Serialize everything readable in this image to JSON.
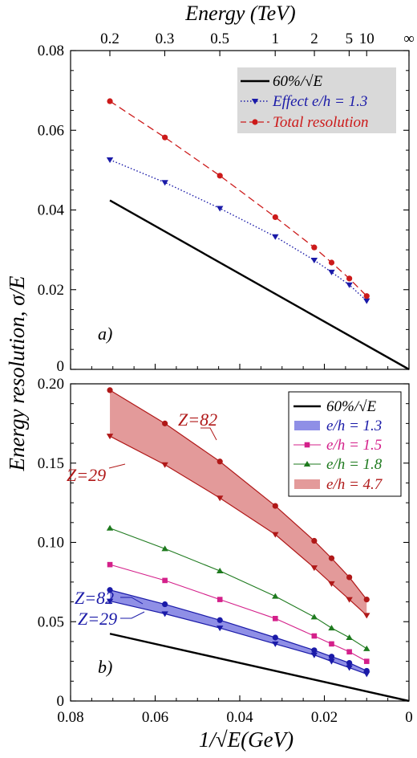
{
  "top_axis": {
    "title": "Energy (TeV)",
    "tick_labels": [
      "0.2",
      "0.3",
      "0.5",
      "1",
      "2",
      "5",
      "10",
      "∞"
    ]
  },
  "ylabel": "Energy resolution, σ/E",
  "xlabel": "1/√E(GeV)",
  "chart_data": [
    {
      "type": "line",
      "panel_label": "a)",
      "xlim": [
        0.08,
        0
      ],
      "ylim": [
        0,
        0.08
      ],
      "x_ticks": [
        "0.08",
        "0.06",
        "0.04",
        "0.02",
        "0"
      ],
      "y_ticks": [
        "0",
        "0.02",
        "0.04",
        "0.06",
        "0.08"
      ],
      "legend_position": "top-right",
      "series": [
        {
          "name": "60%/√E",
          "style": "solid",
          "color": "#000000",
          "x": [
            0.0707,
            0
          ],
          "y": [
            0.0424,
            0
          ]
        },
        {
          "name": "Effect e/h = 1.3",
          "style": "dotted-triangle",
          "color": "#1a1aa8",
          "x": [
            0.0707,
            0.0577,
            0.0447,
            0.0316,
            0.0224,
            0.0183,
            0.0141,
            0.01
          ],
          "y": [
            0.0526,
            0.0469,
            0.0404,
            0.0333,
            0.0274,
            0.0244,
            0.0212,
            0.0172
          ]
        },
        {
          "name": "Total resolution",
          "style": "dashed-circle",
          "color": "#cc1a1a",
          "x": [
            0.0707,
            0.0577,
            0.0447,
            0.0316,
            0.0224,
            0.0183,
            0.0141,
            0.01
          ],
          "y": [
            0.0673,
            0.0582,
            0.0486,
            0.0382,
            0.0306,
            0.0268,
            0.0228,
            0.0184
          ]
        }
      ]
    },
    {
      "type": "line",
      "panel_label": "b)",
      "xlim": [
        0.08,
        0
      ],
      "ylim": [
        0,
        0.2
      ],
      "x_ticks": [
        "0.08",
        "0.06",
        "0.04",
        "0.02",
        "0"
      ],
      "y_ticks": [
        "0",
        "0.05",
        "0.10",
        "0.15",
        "0.20"
      ],
      "legend_position": "top-right",
      "x": [
        0.0707,
        0.0577,
        0.0447,
        0.0316,
        0.0224,
        0.0183,
        0.0141,
        0.01
      ],
      "series": [
        {
          "name": "60%/√E",
          "style": "solid",
          "color": "#000000",
          "x": [
            0.0707,
            0
          ],
          "y": [
            0.0424,
            0
          ]
        },
        {
          "name": "e/h = 1.3",
          "style": "band",
          "color": "#1a1aa8",
          "fill": "#8f8fe6",
          "upper": [
            0.07,
            0.061,
            0.051,
            0.04,
            0.032,
            0.028,
            0.024,
            0.019
          ],
          "lower": [
            0.063,
            0.055,
            0.046,
            0.036,
            0.029,
            0.025,
            0.021,
            0.017
          ]
        },
        {
          "name": "e/h = 1.5",
          "style": "line-square",
          "color": "#d4208a",
          "values": [
            0.086,
            0.076,
            0.064,
            0.052,
            0.041,
            0.036,
            0.031,
            0.025
          ]
        },
        {
          "name": "e/h = 1.8",
          "style": "line-triangle-up",
          "color": "#1e7a1e",
          "values": [
            0.109,
            0.096,
            0.082,
            0.066,
            0.053,
            0.046,
            0.04,
            0.033
          ]
        },
        {
          "name": "e/h = 4.7",
          "style": "band",
          "color": "#b01818",
          "fill": "#e39a9a",
          "upper": [
            0.196,
            0.175,
            0.151,
            0.123,
            0.101,
            0.09,
            0.078,
            0.064
          ],
          "lower": [
            0.167,
            0.149,
            0.128,
            0.105,
            0.084,
            0.074,
            0.064,
            0.054
          ]
        }
      ],
      "annotations": [
        {
          "text": "Z=82",
          "color": "#b01818"
        },
        {
          "text": "Z=29",
          "color": "#b01818"
        },
        {
          "text": "Z=82",
          "color": "#1a1aa8"
        },
        {
          "text": "Z=29",
          "color": "#1a1aa8"
        }
      ]
    }
  ]
}
